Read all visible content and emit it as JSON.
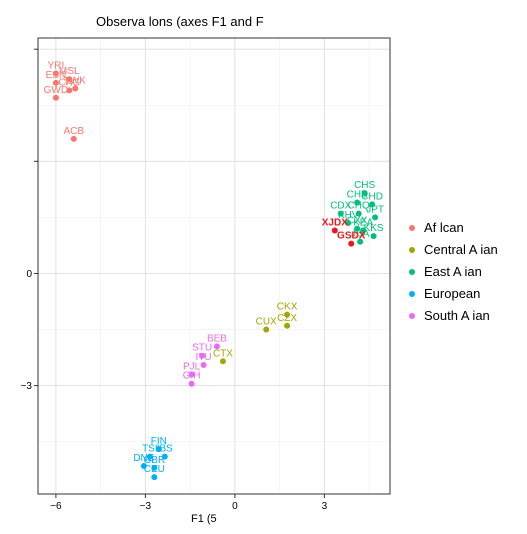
{
  "chart_data": {
    "type": "scatter",
    "title": "Observa lons (axes F1 and F",
    "xlabel": "F1 (5",
    "ylabel": "",
    "xlim": [
      -6.6,
      5.2
    ],
    "ylim": [
      -5.9,
      6.3
    ],
    "x_ticks": [
      -6,
      -3,
      0,
      3
    ],
    "x_tick_labels": [
      "−6",
      "−3",
      "0",
      "3"
    ],
    "y_ticks": [
      -3,
      0,
      3,
      6
    ],
    "y_tick_labels": [
      "−3",
      "0",
      "",
      ""
    ],
    "grid": true,
    "legend_position": "right",
    "series": [
      {
        "name": "Af lcan",
        "color": "#F8766D",
        "points": [
          {
            "label": "YRI",
            "x": -6.0,
            "y": 5.35
          },
          {
            "label": "MSL",
            "x": -5.55,
            "y": 5.2
          },
          {
            "label": "ESN",
            "x": -6.0,
            "y": 5.1
          },
          {
            "label": "LWK",
            "x": -5.35,
            "y": 4.95
          },
          {
            "label": "CAG",
            "x": -5.55,
            "y": 4.9
          },
          {
            "label": "GWD",
            "x": -6.0,
            "y": 4.7
          },
          {
            "label": "ACB",
            "x": -5.4,
            "y": 3.6
          }
        ]
      },
      {
        "name": "Central A ian",
        "color": "#A3A500",
        "points": [
          {
            "label": "CKX",
            "x": 1.75,
            "y": -1.1
          },
          {
            "label": "CUX",
            "x": 1.05,
            "y": -1.5
          },
          {
            "label": "CZX",
            "x": 1.75,
            "y": -1.4
          },
          {
            "label": "CTX",
            "x": -0.4,
            "y": -2.35
          }
        ]
      },
      {
        "name": "East A ian",
        "color": "#00BF7D",
        "points": [
          {
            "label": "CHS",
            "x": 4.35,
            "y": 2.15
          },
          {
            "label": "CHB",
            "x": 4.1,
            "y": 1.9
          },
          {
            "label": "CHD",
            "x": 4.6,
            "y": 1.85
          },
          {
            "label": "CDX",
            "x": 3.55,
            "y": 1.6
          },
          {
            "label": "CHQ",
            "x": 4.15,
            "y": 1.6
          },
          {
            "label": "JPT",
            "x": 4.7,
            "y": 1.5
          },
          {
            "label": "KHV",
            "x": 3.8,
            "y": 1.35
          },
          {
            "label": "KEA",
            "x": 4.3,
            "y": 1.15
          },
          {
            "label": "CXX",
            "x": 4.1,
            "y": 1.2
          },
          {
            "label": "KKS",
            "x": 4.65,
            "y": 1.0
          },
          {
            "label": "JEA",
            "x": 4.2,
            "y": 0.85
          }
        ]
      },
      {
        "name": "European",
        "color": "#00B0F6",
        "points": [
          {
            "label": "FIN",
            "x": -2.55,
            "y": -4.7
          },
          {
            "label": "IBS",
            "x": -2.35,
            "y": -4.9
          },
          {
            "label": "TSI",
            "x": -2.85,
            "y": -4.9
          },
          {
            "label": "DNE",
            "x": -3.05,
            "y": -5.15
          },
          {
            "label": "GBR",
            "x": -2.7,
            "y": -5.2
          },
          {
            "label": "CEU",
            "x": -2.7,
            "y": -5.45
          }
        ]
      },
      {
        "name": "South A ian",
        "color": "#E76BF3",
        "points": [
          {
            "label": "BEB",
            "x": -0.6,
            "y": -1.95
          },
          {
            "label": "STU",
            "x": -1.1,
            "y": -2.2
          },
          {
            "label": "ITU",
            "x": -1.05,
            "y": -2.45
          },
          {
            "label": "PJL",
            "x": -1.45,
            "y": -2.7
          },
          {
            "label": "GIH",
            "x": -1.45,
            "y": -2.95
          }
        ]
      },
      {
        "name": "",
        "color": "#E8191C",
        "points": [
          {
            "label": "XJDX",
            "x": 3.35,
            "y": 1.15
          },
          {
            "label": "GSDX",
            "x": 3.9,
            "y": 0.8
          }
        ]
      }
    ]
  }
}
